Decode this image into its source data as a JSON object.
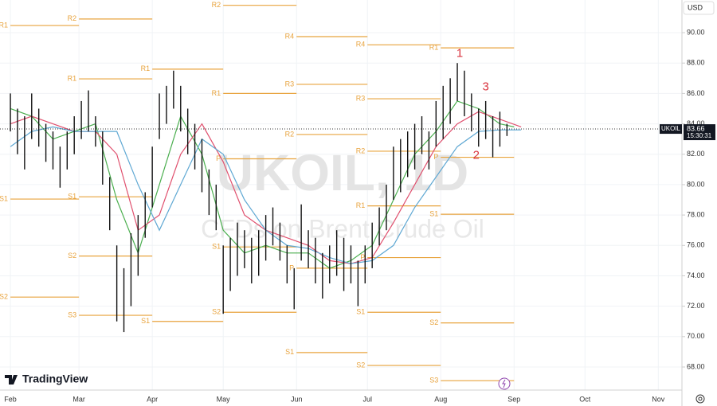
{
  "chart_data": {
    "type": "ohlc",
    "watermark": "UKOIL, 1D",
    "watermark_subtitle": "CFDs on Brent Crude Oil",
    "brand": "TradingView",
    "currency": "USD",
    "symbol_tag": "UKOIL",
    "last_price": {
      "value": 83.66,
      "label": "83.66"
    },
    "countdown": "15:30:31",
    "bar_color": "#111111",
    "ylim": [
      66.48,
      92.15
    ],
    "yticks": [
      {
        "value": 68,
        "label": "68.00"
      },
      {
        "value": 70,
        "label": "70.00"
      },
      {
        "value": 72,
        "label": "72.00"
      },
      {
        "value": 74,
        "label": "74.00"
      },
      {
        "value": 76,
        "label": "76.00"
      },
      {
        "value": 78,
        "label": "78.00"
      },
      {
        "value": 80,
        "label": "80.00"
      },
      {
        "value": 82,
        "label": "82.00"
      },
      {
        "value": 84,
        "label": "84.00"
      },
      {
        "value": 86,
        "label": "86.00"
      },
      {
        "value": 88,
        "label": "88.00"
      },
      {
        "value": 90,
        "label": "90.00"
      }
    ],
    "xlim": [
      -4.4,
      284
    ],
    "xticks": [
      {
        "value": 0,
        "label": "Feb"
      },
      {
        "value": 29,
        "label": "Mar"
      },
      {
        "value": 60,
        "label": "Apr"
      },
      {
        "value": 90,
        "label": "May"
      },
      {
        "value": 121,
        "label": "Jun"
      },
      {
        "value": 151,
        "label": "Jul"
      },
      {
        "value": 182,
        "label": "Aug"
      },
      {
        "value": 213,
        "label": "Sep"
      },
      {
        "value": 243,
        "label": "Oct"
      },
      {
        "value": 274,
        "label": "Nov"
      }
    ],
    "x": [
      0,
      3,
      6,
      9,
      12,
      15,
      18,
      21,
      24,
      27,
      30,
      33,
      36,
      39,
      42,
      45,
      48,
      51,
      54,
      57,
      60,
      63,
      66,
      69,
      72,
      75,
      78,
      81,
      84,
      87,
      90,
      93,
      96,
      99,
      102,
      105,
      108,
      111,
      114,
      117,
      120,
      123,
      126,
      129,
      132,
      135,
      138,
      141,
      144,
      147,
      150,
      153,
      156,
      159,
      162,
      165,
      168,
      171,
      174,
      177,
      180,
      183,
      186,
      189,
      192,
      195,
      198,
      201,
      204,
      207,
      210
    ],
    "highs": [
      86,
      85,
      84.5,
      86,
      85,
      84,
      83.5,
      82.5,
      83.5,
      84.5,
      85.5,
      86.2,
      84.5,
      83.5,
      80.5,
      76,
      74.5,
      76.8,
      78,
      79.5,
      82.5,
      86,
      86.5,
      87.5,
      86.5,
      85,
      84,
      83,
      81,
      80,
      76,
      76.5,
      77.5,
      77,
      76.5,
      77,
      78,
      78.5,
      77.5,
      76,
      74.5,
      78.7,
      77,
      76.5,
      75.5,
      76,
      77,
      76.5,
      76,
      75,
      76,
      77.5,
      78.5,
      80,
      82.5,
      83,
      83.5,
      84,
      84.5,
      83.5,
      85.5,
      86.5,
      87,
      88,
      87.5,
      86,
      85,
      85.5,
      84.5,
      84.8,
      84
    ],
    "lows": [
      83.5,
      82,
      81,
      83,
      82.5,
      81.5,
      81,
      79.8,
      81,
      82,
      83,
      83.5,
      82.5,
      80,
      77,
      71,
      70.3,
      72,
      74,
      76.5,
      78.5,
      83,
      84,
      85,
      83.5,
      82,
      81,
      79.5,
      78,
      77,
      71.5,
      73,
      74,
      74.5,
      73.5,
      74,
      75,
      76,
      75,
      73.5,
      71.8,
      75,
      74.5,
      73.5,
      72.5,
      73.5,
      74,
      73,
      73.5,
      72,
      73.5,
      74.5,
      76,
      77,
      79,
      79.5,
      80.5,
      81,
      82,
      81,
      82.5,
      83,
      84,
      85.5,
      84.5,
      83.5,
      82.5,
      83,
      81.8,
      82.5,
      83.2
    ],
    "moving_averages": [
      {
        "color": "#4caf50",
        "x": [
          0,
          9,
          18,
          27,
          36,
          45,
          54,
          63,
          72,
          81,
          90,
          99,
          108,
          117,
          126,
          135,
          144,
          153,
          162,
          171,
          180,
          189,
          198,
          207,
          213
        ],
        "values": [
          85,
          84.5,
          83,
          83.5,
          84,
          79,
          75.5,
          80,
          84.5,
          82,
          77,
          75.5,
          76,
          75.5,
          75.5,
          74.5,
          75,
          76,
          79,
          82,
          83.5,
          85.5,
          85,
          84,
          83.8
        ]
      },
      {
        "color": "#e0506e",
        "x": [
          0,
          9,
          18,
          27,
          36,
          45,
          54,
          63,
          72,
          81,
          90,
          99,
          108,
          117,
          126,
          135,
          144,
          153,
          162,
          171,
          180,
          189,
          198,
          207,
          216
        ],
        "values": [
          84,
          84.5,
          84,
          83.5,
          83.5,
          82,
          77,
          78,
          82,
          84,
          81.5,
          78,
          77,
          76.5,
          76,
          75,
          74.8,
          75.2,
          77.5,
          80,
          82.5,
          84,
          84.8,
          84.3,
          83.8
        ]
      },
      {
        "color": "#5fa8d3",
        "x": [
          0,
          9,
          18,
          27,
          36,
          45,
          54,
          63,
          72,
          81,
          90,
          99,
          108,
          117,
          126,
          135,
          144,
          153,
          162,
          171,
          180,
          189,
          198,
          207,
          216
        ],
        "values": [
          82.5,
          83.5,
          83.8,
          83.5,
          83.5,
          83.5,
          80,
          77,
          80,
          83,
          82,
          79,
          77,
          76,
          75.8,
          75.2,
          74.8,
          75,
          76,
          78.5,
          80.5,
          82.5,
          83.5,
          83.6,
          83.6
        ]
      }
    ],
    "pivot_color": "#e8a33d",
    "pivots": [
      {
        "start": 0,
        "end": 29,
        "levels": [
          {
            "label": "R1",
            "value": 90.47
          },
          {
            "label": "S1",
            "value": 79.05
          },
          {
            "label": "S2",
            "value": 72.6
          }
        ]
      },
      {
        "start": 29,
        "end": 60,
        "levels": [
          {
            "label": "R2",
            "value": 90.9
          },
          {
            "label": "R1",
            "value": 86.96
          },
          {
            "label": "S1",
            "value": 79.2
          },
          {
            "label": "S2",
            "value": 75.3
          },
          {
            "label": "S3",
            "value": 71.4
          }
        ]
      },
      {
        "start": 60,
        "end": 90,
        "levels": [
          {
            "label": "R1",
            "value": 87.6
          },
          {
            "label": "S1",
            "value": 71.0
          }
        ]
      },
      {
        "start": 90,
        "end": 121,
        "levels": [
          {
            "label": "R2",
            "value": 91.8
          },
          {
            "label": "R1",
            "value": 86.0
          },
          {
            "label": "P",
            "value": 81.7
          },
          {
            "label": "S1",
            "value": 75.9
          },
          {
            "label": "S2",
            "value": 71.6
          }
        ]
      },
      {
        "start": 121,
        "end": 151,
        "levels": [
          {
            "label": "R4",
            "value": 89.74
          },
          {
            "label": "R3",
            "value": 86.6
          },
          {
            "label": "R2",
            "value": 83.3
          },
          {
            "label": "P",
            "value": 74.5
          },
          {
            "label": "S1",
            "value": 68.95
          }
        ]
      },
      {
        "start": 151,
        "end": 182,
        "levels": [
          {
            "label": "R4",
            "value": 89.2
          },
          {
            "label": "R3",
            "value": 85.65
          },
          {
            "label": "R2",
            "value": 82.2
          },
          {
            "label": "R1",
            "value": 78.6
          },
          {
            "label": "P",
            "value": 75.2
          },
          {
            "label": "S1",
            "value": 71.6
          },
          {
            "label": "S2",
            "value": 68.1
          }
        ]
      },
      {
        "start": 182,
        "end": 213,
        "levels": [
          {
            "label": "R1",
            "value": 89.0
          },
          {
            "label": "P",
            "value": 81.8
          },
          {
            "label": "S1",
            "value": 78.05
          },
          {
            "label": "S2",
            "value": 70.9
          },
          {
            "label": "S3",
            "value": 67.1
          }
        ]
      }
    ],
    "annotation_color": "#d9343f",
    "annotations": [
      {
        "text": "1",
        "x": 190,
        "y": 88.6
      },
      {
        "text": "3",
        "x": 201,
        "y": 86.4
      },
      {
        "text": "2",
        "x": 197,
        "y": 81.9
      }
    ]
  }
}
